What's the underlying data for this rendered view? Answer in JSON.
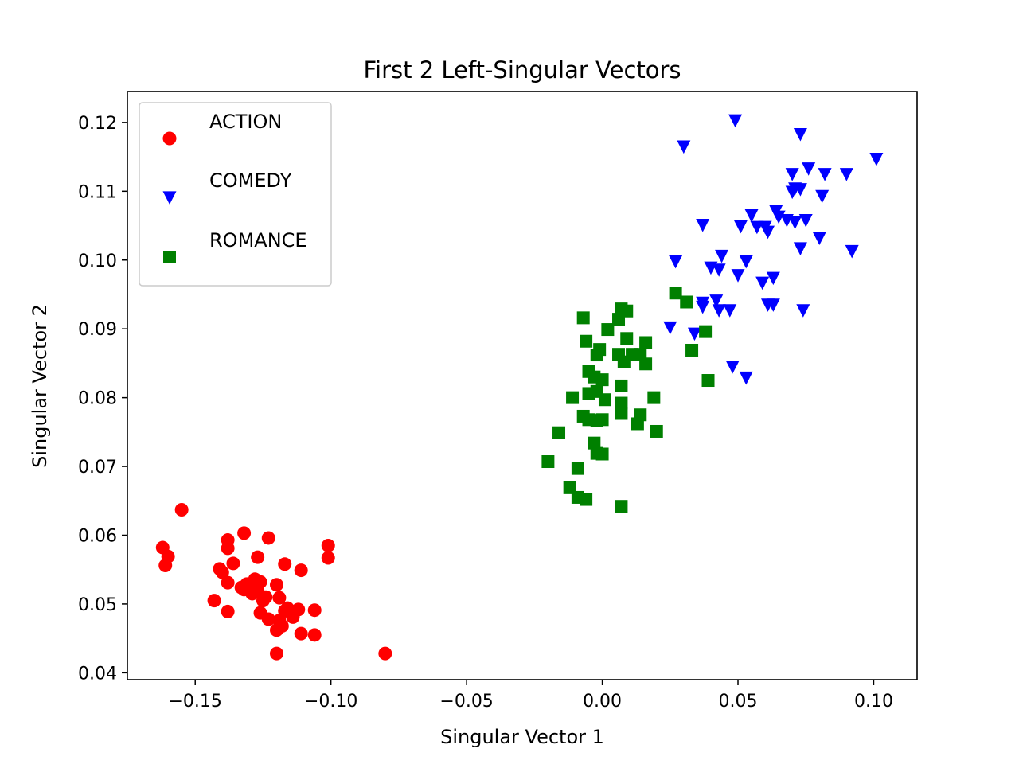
{
  "chart_data": {
    "type": "scatter",
    "title": "First 2 Left-Singular Vectors",
    "xlabel": "Singular Vector 1",
    "ylabel": "Singular Vector 2",
    "xlim": [
      -0.175,
      0.116
    ],
    "ylim": [
      0.039,
      0.1245
    ],
    "x_ticks": [
      -0.15,
      -0.1,
      -0.05,
      0.0,
      0.05,
      0.1
    ],
    "x_tick_labels": [
      "−0.15",
      "−0.10",
      "−0.05",
      "0.00",
      "0.05",
      "0.10"
    ],
    "y_ticks": [
      0.04,
      0.05,
      0.06,
      0.07,
      0.08,
      0.09,
      0.1,
      0.11,
      0.12
    ],
    "y_tick_labels": [
      "0.04",
      "0.05",
      "0.06",
      "0.07",
      "0.08",
      "0.09",
      "0.10",
      "0.11",
      "0.12"
    ],
    "grid": false,
    "legend_position": "upper-left",
    "series": [
      {
        "name": "ACTION",
        "marker": "circle",
        "color": "#ff0000",
        "points": [
          [
            -0.155,
            0.0637
          ],
          [
            -0.162,
            0.0582
          ],
          [
            -0.16,
            0.0569
          ],
          [
            -0.161,
            0.0556
          ],
          [
            -0.138,
            0.0593
          ],
          [
            -0.138,
            0.0581
          ],
          [
            -0.132,
            0.0603
          ],
          [
            -0.123,
            0.0596
          ],
          [
            -0.101,
            0.0585
          ],
          [
            -0.101,
            0.0567
          ],
          [
            -0.141,
            0.0551
          ],
          [
            -0.14,
            0.0546
          ],
          [
            -0.136,
            0.0559
          ],
          [
            -0.127,
            0.0568
          ],
          [
            -0.117,
            0.0558
          ],
          [
            -0.111,
            0.0549
          ],
          [
            -0.138,
            0.0531
          ],
          [
            -0.133,
            0.0524
          ],
          [
            -0.131,
            0.0529
          ],
          [
            -0.128,
            0.0536
          ],
          [
            -0.126,
            0.0532
          ],
          [
            -0.127,
            0.052
          ],
          [
            -0.124,
            0.051
          ],
          [
            -0.12,
            0.0528
          ],
          [
            -0.119,
            0.0509
          ],
          [
            -0.143,
            0.0505
          ],
          [
            -0.138,
            0.0489
          ],
          [
            -0.132,
            0.0521
          ],
          [
            -0.129,
            0.0515
          ],
          [
            -0.125,
            0.0505
          ],
          [
            -0.126,
            0.0487
          ],
          [
            -0.123,
            0.0478
          ],
          [
            -0.119,
            0.0476
          ],
          [
            -0.117,
            0.049
          ],
          [
            -0.116,
            0.0494
          ],
          [
            -0.114,
            0.0481
          ],
          [
            -0.112,
            0.0492
          ],
          [
            -0.12,
            0.0462
          ],
          [
            -0.118,
            0.0468
          ],
          [
            -0.111,
            0.0457
          ],
          [
            -0.106,
            0.0491
          ],
          [
            -0.106,
            0.0455
          ],
          [
            -0.12,
            0.0428
          ],
          [
            -0.08,
            0.0428
          ]
        ]
      },
      {
        "name": "COMEDY",
        "marker": "triangle-down",
        "color": "#0000ff",
        "points": [
          [
            0.049,
            0.1203
          ],
          [
            0.073,
            0.1183
          ],
          [
            0.03,
            0.1165
          ],
          [
            0.101,
            0.1147
          ],
          [
            0.076,
            0.1133
          ],
          [
            0.07,
            0.1125
          ],
          [
            0.082,
            0.1125
          ],
          [
            0.09,
            0.1125
          ],
          [
            0.071,
            0.1104
          ],
          [
            0.073,
            0.1103
          ],
          [
            0.07,
            0.1099
          ],
          [
            0.081,
            0.1093
          ],
          [
            0.064,
            0.1071
          ],
          [
            0.065,
            0.1063
          ],
          [
            0.055,
            0.1065
          ],
          [
            0.068,
            0.1058
          ],
          [
            0.071,
            0.1055
          ],
          [
            0.075,
            0.1058
          ],
          [
            0.057,
            0.1048
          ],
          [
            0.06,
            0.1048
          ],
          [
            0.051,
            0.1049
          ],
          [
            0.061,
            0.1041
          ],
          [
            0.037,
            0.1051
          ],
          [
            0.08,
            0.1032
          ],
          [
            0.073,
            0.1017
          ],
          [
            0.092,
            0.1013
          ],
          [
            0.044,
            0.1006
          ],
          [
            0.053,
            0.0998
          ],
          [
            0.027,
            0.0998
          ],
          [
            0.04,
            0.0989
          ],
          [
            0.043,
            0.0986
          ],
          [
            0.05,
            0.0978
          ],
          [
            0.063,
            0.0974
          ],
          [
            0.059,
            0.0967
          ],
          [
            0.037,
            0.0938
          ],
          [
            0.042,
            0.0941
          ],
          [
            0.061,
            0.0935
          ],
          [
            0.063,
            0.0935
          ],
          [
            0.037,
            0.0932
          ],
          [
            0.043,
            0.0927
          ],
          [
            0.047,
            0.0927
          ],
          [
            0.074,
            0.0927
          ],
          [
            0.025,
            0.0902
          ],
          [
            0.034,
            0.0893
          ],
          [
            0.048,
            0.0845
          ],
          [
            0.053,
            0.0829
          ]
        ]
      },
      {
        "name": "ROMANCE",
        "marker": "square",
        "color": "#008000",
        "points": [
          [
            0.027,
            0.0952
          ],
          [
            0.031,
            0.0939
          ],
          [
            0.007,
            0.0929
          ],
          [
            0.009,
            0.0926
          ],
          [
            0.006,
            0.0914
          ],
          [
            -0.007,
            0.0916
          ],
          [
            0.002,
            0.0899
          ],
          [
            0.009,
            0.0886
          ],
          [
            0.016,
            0.088
          ],
          [
            0.038,
            0.0896
          ],
          [
            -0.006,
            0.0882
          ],
          [
            -0.001,
            0.087
          ],
          [
            -0.002,
            0.0862
          ],
          [
            0.006,
            0.0863
          ],
          [
            0.011,
            0.0863
          ],
          [
            0.014,
            0.0863
          ],
          [
            0.008,
            0.0852
          ],
          [
            0.016,
            0.0849
          ],
          [
            0.033,
            0.0869
          ],
          [
            -0.005,
            0.0838
          ],
          [
            -0.003,
            0.083
          ],
          [
            0.0,
            0.0826
          ],
          [
            0.007,
            0.0817
          ],
          [
            0.039,
            0.0825
          ],
          [
            -0.005,
            0.0806
          ],
          [
            -0.002,
            0.0809
          ],
          [
            0.001,
            0.0797
          ],
          [
            0.007,
            0.0792
          ],
          [
            -0.011,
            0.08
          ],
          [
            0.019,
            0.08
          ],
          [
            -0.007,
            0.0773
          ],
          [
            -0.005,
            0.0768
          ],
          [
            -0.002,
            0.0767
          ],
          [
            0.0,
            0.0768
          ],
          [
            0.007,
            0.0777
          ],
          [
            0.013,
            0.0762
          ],
          [
            0.014,
            0.0775
          ],
          [
            0.02,
            0.0751
          ],
          [
            -0.016,
            0.0749
          ],
          [
            -0.003,
            0.0734
          ],
          [
            -0.002,
            0.0719
          ],
          [
            0.0,
            0.0718
          ],
          [
            -0.02,
            0.0707
          ],
          [
            -0.009,
            0.0697
          ],
          [
            -0.012,
            0.0669
          ],
          [
            -0.009,
            0.0655
          ],
          [
            -0.006,
            0.0652
          ],
          [
            0.007,
            0.0642
          ]
        ]
      }
    ]
  }
}
